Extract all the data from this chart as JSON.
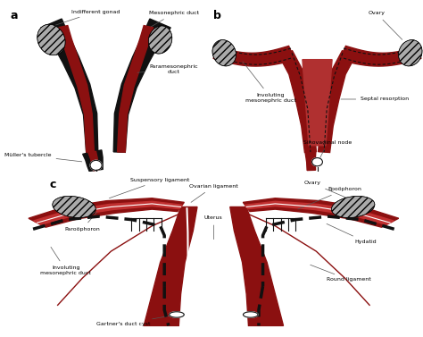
{
  "background_color": "#ffffff",
  "dark_red": "#8B1010",
  "black": "#111111",
  "gray": "#909090",
  "panel_labels": [
    "a",
    "b",
    "c"
  ],
  "ann_fontsize": 4.5,
  "label_fontsize": 9
}
